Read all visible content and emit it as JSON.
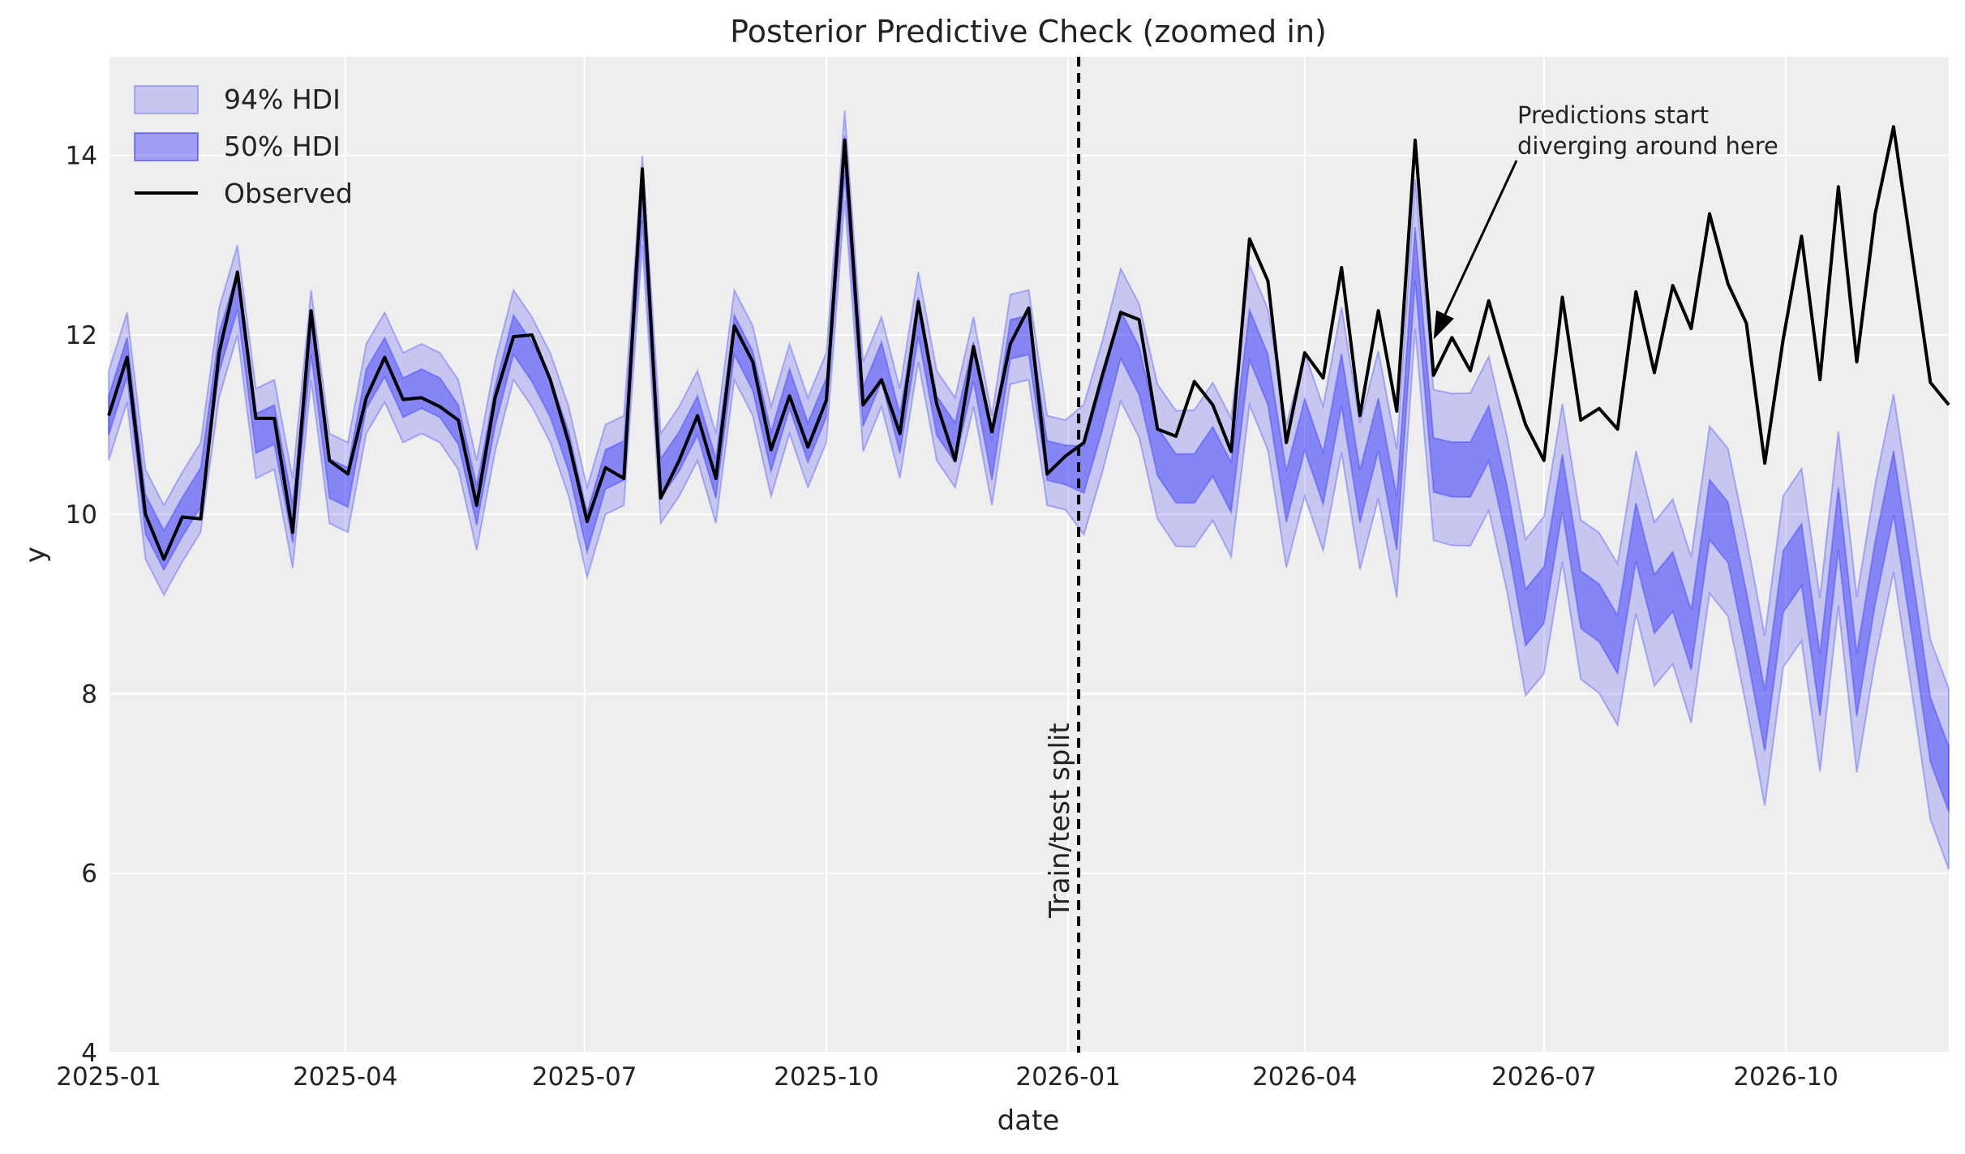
{
  "chart_data": {
    "type": "line",
    "title": "Posterior Predictive Check (zoomed in)",
    "xlabel": "date",
    "ylabel": "y",
    "x_start": "2025-01-01",
    "x_frequency": "weekly",
    "xlim": [
      "2025-01-01",
      "2026-12-02"
    ],
    "ylim": [
      4,
      15.1
    ],
    "yticks": [
      4,
      6,
      8,
      10,
      12,
      14
    ],
    "xticks": [
      "2025-01",
      "2025-04",
      "2025-07",
      "2025-10",
      "2026-01",
      "2026-04",
      "2026-07",
      "2026-10"
    ],
    "grid": true,
    "legend_placement": "top-left",
    "legend": [
      "94% HDI",
      "50% HDI",
      "Observed"
    ],
    "colors": {
      "hdi_94": "#0000ff",
      "hdi_50": "#0000ff",
      "observed": "#000000",
      "background": "#eeeeee"
    },
    "split_date": "2026-01-05",
    "split_label": "Train/test split",
    "annotation": {
      "text_line1": "Predictions start",
      "text_line2": "diverging around here",
      "target_date": "2026-05-20",
      "target_y": 11.95
    },
    "observed": [
      11.1,
      11.75,
      10.0,
      9.5,
      9.97,
      9.95,
      11.8,
      12.7,
      11.07,
      11.07,
      9.8,
      12.27,
      10.6,
      10.45,
      11.3,
      11.75,
      11.28,
      11.3,
      11.2,
      11.05,
      10.1,
      11.3,
      11.98,
      12.0,
      11.5,
      10.8,
      9.92,
      10.52,
      10.4,
      13.85,
      10.18,
      10.6,
      11.1,
      10.4,
      12.1,
      11.7,
      10.72,
      11.32,
      10.75,
      11.27,
      14.17,
      11.22,
      11.5,
      10.9,
      12.37,
      11.23,
      10.6,
      11.87,
      10.92,
      11.9,
      12.3,
      10.45,
      10.65,
      10.8,
      11.55,
      12.25,
      12.17,
      10.95,
      10.87,
      11.48,
      11.22,
      10.7,
      13.07,
      12.6,
      10.8,
      11.8,
      11.52,
      12.75,
      11.1,
      12.27,
      11.15,
      14.17,
      11.55,
      11.97,
      11.6,
      12.38,
      11.67,
      11.0,
      10.6,
      12.42,
      11.05,
      11.18,
      10.95,
      12.48,
      11.58,
      12.55,
      12.07,
      13.35,
      12.57,
      12.13,
      10.57,
      11.95,
      13.1,
      11.5,
      13.65,
      11.7,
      13.35,
      14.32,
      12.9,
      11.47,
      11.22
    ],
    "predicted_mean": [
      11.1,
      11.75,
      10.0,
      9.6,
      9.97,
      10.3,
      11.8,
      12.5,
      10.9,
      11.0,
      9.9,
      12.0,
      10.4,
      10.3,
      11.4,
      11.75,
      11.3,
      11.4,
      11.3,
      11.0,
      10.1,
      11.2,
      12.0,
      11.7,
      11.3,
      10.7,
      9.8,
      10.5,
      10.6,
      13.5,
      10.4,
      10.7,
      11.1,
      10.4,
      12.0,
      11.6,
      10.7,
      11.4,
      10.8,
      11.3,
      14.0,
      11.2,
      11.7,
      10.9,
      12.2,
      11.1,
      10.8,
      11.7,
      10.6,
      11.95,
      12.0,
      10.6,
      10.55,
      10.5,
      11.2,
      12.0,
      11.6,
      10.7,
      10.4,
      10.4,
      10.7,
      10.3,
      12.0,
      11.5,
      10.2,
      11.0,
      10.4,
      11.5,
      10.2,
      11.0,
      9.9,
      12.9,
      10.55,
      10.5,
      10.5,
      10.9,
      10.0,
      8.85,
      9.1,
      10.35,
      9.05,
      8.9,
      8.55,
      9.8,
      9.0,
      9.25,
      8.6,
      10.05,
      9.8,
      8.8,
      7.7,
      9.25,
      9.55,
      8.1,
      9.95,
      8.1,
      9.35,
      10.35,
      9.0,
      7.6,
      7.05
    ],
    "hdi_50_halfwidth": {
      "train": 0.22,
      "test": 0.26
    },
    "hdi_94_halfwidth": {
      "train": 0.5,
      "test": 0.72
    }
  }
}
